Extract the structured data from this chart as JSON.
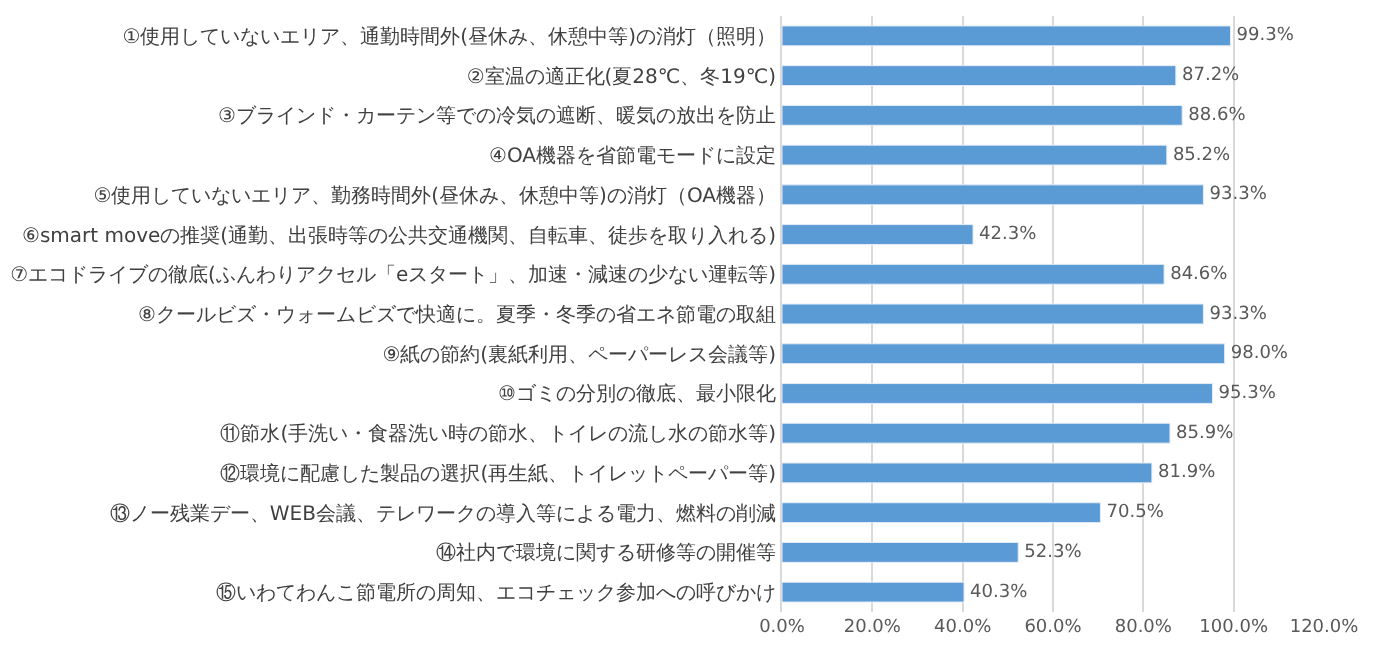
{
  "chart_data": {
    "type": "bar",
    "orientation": "horizontal",
    "categories": [
      "①使用していないエリア、通勤時間外(昼休み、休憩中等)の消灯（照明）",
      "②室温の適正化(夏28℃、冬19℃)",
      "③ブラインド・カーテン等での冷気の遮断、暖気の放出を防止",
      "④OA機器を省節電モードに設定",
      "⑤使用していないエリア、勤務時間外(昼休み、休憩中等)の消灯（OA機器）",
      "⑥smart moveの推奨(通勤、出張時等の公共交通機関、自転車、徒歩を取り入れる)",
      "⑦エコドライブの徹底(ふんわりアクセル「eスタート」、加速・減速の少ない運転等)",
      "⑧クールビズ・ウォームビズで快適に。夏季・冬季の省エネ節電の取組",
      "⑨紙の節約(裏紙利用、ペーパーレス会議等)",
      "⑩ゴミの分別の徹底、最小限化",
      "⑪節水(手洗い・食器洗い時の節水、トイレの流し水の節水等)",
      "⑫環境に配慮した製品の選択(再生紙、トイレットペーパー等)",
      "⑬ノー残業デー、WEB会議、テレワークの導入等による電力、燃料の削減",
      "⑭社内で環境に関する研修等の開催等",
      "⑮いわてわんこ節電所の周知、エコチェック参加への呼びかけ"
    ],
    "values": [
      99.3,
      87.2,
      88.6,
      85.2,
      93.3,
      42.3,
      84.6,
      93.3,
      98.0,
      95.3,
      85.9,
      81.9,
      70.5,
      52.3,
      40.3
    ],
    "value_labels": [
      "99.3%",
      "87.2%",
      "88.6%",
      "85.2%",
      "93.3%",
      "42.3%",
      "84.6%",
      "93.3%",
      "98.0%",
      "95.3%",
      "85.9%",
      "81.9%",
      "70.5%",
      "52.3%",
      "40.3%"
    ],
    "color": "#5b9bd5",
    "xlim": [
      0,
      120
    ],
    "xticks": [
      {
        "value": 0,
        "label": "0.0%"
      },
      {
        "value": 20,
        "label": "20.0%"
      },
      {
        "value": 40,
        "label": "40.0%"
      },
      {
        "value": 60,
        "label": "60.0%"
      },
      {
        "value": 80,
        "label": "80.0%"
      },
      {
        "value": 100,
        "label": "100.0%"
      },
      {
        "value": 120,
        "label": "120.0%"
      }
    ],
    "grid": "x"
  }
}
